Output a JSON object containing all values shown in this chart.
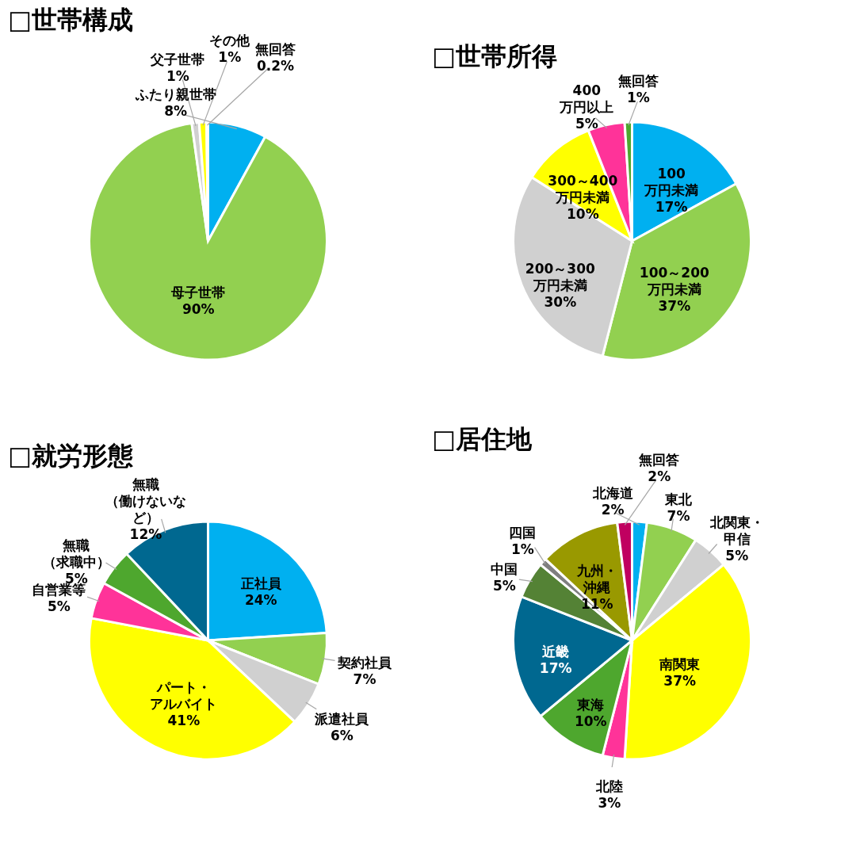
{
  "chart_data": [
    {
      "type": "pie",
      "title": "□世帯構成",
      "categories": [
        "ふたり親世帯",
        "母子世帯",
        "父子世帯",
        "その他",
        "無回答"
      ],
      "values": [
        8,
        90,
        1,
        1,
        0.2
      ],
      "colors": [
        "#00b0f0",
        "#92d050",
        "#d0d0d0",
        "#ffff00",
        "#4ea72e"
      ],
      "value_labels": [
        "8%",
        "90%",
        "1%",
        "1%",
        "0.2%"
      ]
    },
    {
      "type": "pie",
      "title": "□世帯所得",
      "categories": [
        "100万円未満",
        "100～200万円未満",
        "200～300万円未満",
        "300～400万円未満",
        "400万円以上",
        "無回答"
      ],
      "values": [
        17,
        37,
        30,
        10,
        5,
        1
      ],
      "colors": [
        "#00b0f0",
        "#92d050",
        "#d0d0d0",
        "#ffff00",
        "#ff3399",
        "#4ea72e"
      ],
      "value_labels": [
        "17%",
        "37%",
        "30%",
        "10%",
        "5%",
        "1%"
      ]
    },
    {
      "type": "pie",
      "title": "□就労形態",
      "categories": [
        "正社員",
        "契約社員",
        "派遣社員",
        "パート・アルバイト",
        "自営業等",
        "無職（求職中）",
        "無職（働けないなど）"
      ],
      "values": [
        24,
        7,
        6,
        41,
        5,
        5,
        12
      ],
      "colors": [
        "#00b0f0",
        "#92d050",
        "#d0d0d0",
        "#ffff00",
        "#ff3399",
        "#4ea72e",
        "#006890"
      ],
      "value_labels": [
        "24%",
        "7%",
        "6%",
        "41%",
        "5%",
        "5%",
        "12%"
      ]
    },
    {
      "type": "pie",
      "title": "□居住地",
      "categories": [
        "北海道",
        "東北",
        "北関東・甲信",
        "南関東",
        "北陸",
        "東海",
        "近畿",
        "中国",
        "四国",
        "九州・沖縄",
        "無回答"
      ],
      "values": [
        2,
        7,
        5,
        37,
        3,
        10,
        17,
        5,
        1,
        11,
        2
      ],
      "colors": [
        "#00b0f0",
        "#92d050",
        "#d0d0d0",
        "#ffff00",
        "#ff3399",
        "#4ea72e",
        "#006890",
        "#548235",
        "#7f7f7f",
        "#999900",
        "#c00060"
      ],
      "value_labels": [
        "2%",
        "7%",
        "5%",
        "37%",
        "3%",
        "10%",
        "17%",
        "5%",
        "1%",
        "11%",
        "2%"
      ]
    }
  ]
}
